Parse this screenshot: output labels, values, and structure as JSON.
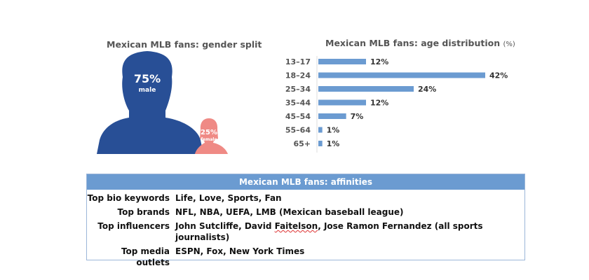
{
  "gender": {
    "title": "Mexican MLB fans: gender split",
    "male": {
      "pct": "75%",
      "label": "male",
      "color": "#284f96"
    },
    "female": {
      "pct": "25%",
      "label": "female",
      "color": "#ef8a85"
    }
  },
  "age": {
    "title": "Mexican MLB fans: age distribution",
    "unit": "(%)"
  },
  "chart_data": [
    {
      "type": "pie",
      "title": "Mexican MLB fans: gender split",
      "categories": [
        "male",
        "female"
      ],
      "values": [
        75,
        25
      ],
      "colors": [
        "#284f96",
        "#ef8a85"
      ]
    },
    {
      "type": "bar",
      "orientation": "horizontal",
      "title": "Mexican MLB fans: age distribution (%)",
      "categories": [
        "13-17",
        "18-24",
        "25-34",
        "35-44",
        "45-54",
        "55-64",
        "65+"
      ],
      "values": [
        12,
        42,
        24,
        12,
        7,
        1,
        1
      ],
      "labels": [
        "12%",
        "42%",
        "24%",
        "12%",
        "7%",
        "1%",
        "1%"
      ],
      "color": "#6b9bd1",
      "xlabel": "",
      "ylabel": "",
      "xlim": [
        0,
        42
      ]
    }
  ],
  "affinities": {
    "title": "Mexican MLB fans: affinities",
    "rows": [
      {
        "key": "Top bio keywords",
        "value": "Life, Love, Sports, Fan"
      },
      {
        "key": "Top brands",
        "value": "NFL, NBA, UEFA, LMB (Mexican baseball league)"
      },
      {
        "key": "Top influencers",
        "value_pre": "John Sutcliffe, David ",
        "value_err": "Faitelson",
        "value_post": ", Jose Ramon Fernandez (all sports journalists)"
      },
      {
        "key": "Top media outlets",
        "value": "ESPN, Fox, New York Times"
      }
    ]
  }
}
